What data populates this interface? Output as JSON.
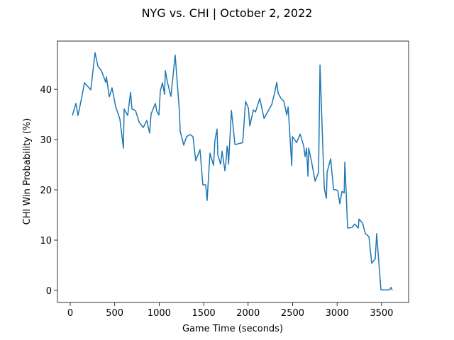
{
  "chart_data": {
    "type": "line",
    "title": "NYG vs. CHI | October 2, 2022",
    "x_label": "Game Time (seconds)",
    "y_label": "CHI Win Probability (%)",
    "color": "#1f77b4",
    "x": [
      24,
      64,
      88,
      128,
      160,
      231,
      279,
      311,
      351,
      399,
      407,
      439,
      470,
      510,
      558,
      598,
      606,
      646,
      678,
      694,
      734,
      774,
      821,
      861,
      893,
      909,
      957,
      973,
      997,
      1013,
      1037,
      1061,
      1069,
      1093,
      1132,
      1180,
      1228,
      1236,
      1276,
      1308,
      1348,
      1380,
      1411,
      1459,
      1491,
      1523,
      1539,
      1571,
      1611,
      1627,
      1651,
      1659,
      1691,
      1707,
      1739,
      1747,
      1764,
      1772,
      1780,
      1812,
      1852,
      1939,
      1971,
      2003,
      2019,
      2059,
      2083,
      2131,
      2179,
      2266,
      2298,
      2322,
      2338,
      2370,
      2402,
      2434,
      2450,
      2490,
      2498,
      2545,
      2585,
      2625,
      2641,
      2657,
      2673,
      2681,
      2713,
      2753,
      2792,
      2808,
      2824,
      2856,
      2880,
      2888,
      2928,
      2960,
      3007,
      3031,
      3055,
      3080,
      3087,
      3103,
      3118,
      3166,
      3198,
      3238,
      3246,
      3286,
      3318,
      3358,
      3389,
      3429,
      3445,
      3493,
      3589,
      3605,
      3621
    ],
    "values": [
      34.8,
      37.2,
      34.8,
      38.3,
      41.3,
      39.9,
      47.3,
      44.6,
      43.7,
      41.4,
      42.5,
      38.5,
      40.3,
      36.6,
      34.1,
      28.3,
      36.1,
      34.8,
      39.4,
      36.1,
      35.8,
      33.5,
      32.4,
      33.8,
      31.3,
      35.1,
      37.2,
      35.6,
      34.9,
      39.7,
      41.3,
      39.0,
      43.7,
      41.4,
      38.6,
      46.8,
      35.5,
      31.7,
      28.9,
      30.6,
      31.0,
      30.6,
      25.8,
      28.0,
      21.0,
      21.0,
      17.9,
      27.3,
      24.9,
      29.9,
      32.1,
      27.0,
      25.1,
      27.7,
      23.8,
      24.9,
      28.7,
      27.9,
      25.1,
      35.8,
      29.0,
      29.4,
      37.6,
      36.3,
      32.7,
      35.9,
      35.5,
      38.2,
      34.2,
      37.0,
      39.3,
      41.4,
      39.2,
      38.2,
      37.6,
      34.9,
      36.5,
      24.8,
      30.6,
      29.4,
      31.1,
      28.7,
      26.6,
      28.3,
      22.7,
      28.3,
      25.6,
      21.7,
      23.5,
      44.8,
      36.5,
      20.3,
      18.3,
      23.5,
      26.2,
      20.1,
      19.9,
      17.2,
      19.7,
      19.4,
      25.5,
      19.3,
      12.4,
      12.5,
      13.2,
      12.4,
      14.2,
      13.4,
      11.3,
      10.7,
      5.4,
      6.3,
      11.3,
      0.1,
      0.1,
      0.6,
      0.0
    ],
    "xlim": [
      -143.5,
      3804
    ],
    "ylim": [
      -2.4,
      49.6
    ],
    "xticks": [
      0,
      500,
      1000,
      1500,
      2000,
      2500,
      3000,
      3500
    ],
    "yticks": [
      0,
      10,
      20,
      30,
      40
    ]
  }
}
